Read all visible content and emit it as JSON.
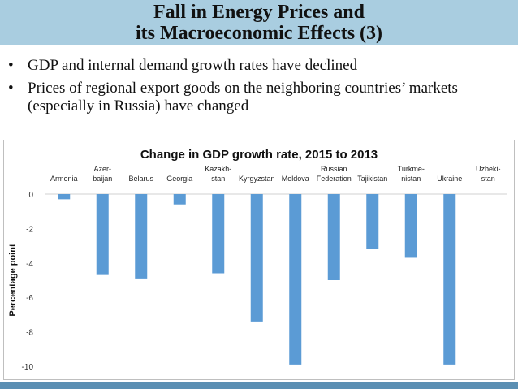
{
  "slide": {
    "title_line1": "Fall in Energy Prices and",
    "title_line2": "its Macroeconomic Effects (3)",
    "bullets": [
      "GDP and internal demand growth rates have declined",
      "Prices of regional export goods on the neighboring countries’ markets (especially in Russia) have changed"
    ],
    "bullet_symbol": "•"
  },
  "colors": {
    "title_band": "#a9cde0",
    "bar": "#5b9bd5",
    "bottom_band": "#5b8fb3"
  },
  "chart_data": {
    "type": "bar",
    "title": "Change in GDP growth rate, 2015 to 2013",
    "ylabel": "Percentage point",
    "xlabel": "",
    "ylim": [
      -10,
      0
    ],
    "yticks": [
      0,
      -2,
      -4,
      -6,
      -8,
      -10
    ],
    "grid": false,
    "categories": [
      [
        "Armenia"
      ],
      [
        "Azer-",
        "baijan"
      ],
      [
        "Belarus"
      ],
      [
        "Georgia"
      ],
      [
        "Kazakh-",
        "stan"
      ],
      [
        "Kyrgyzstan"
      ],
      [
        "Moldova"
      ],
      [
        "Russian",
        "Federation"
      ],
      [
        "Tajikistan"
      ],
      [
        "Turkme-",
        "nistan"
      ],
      [
        "Ukraine"
      ],
      [
        "Uzbeki-",
        "stan"
      ]
    ],
    "values": [
      -0.3,
      -4.7,
      -4.9,
      -0.6,
      -4.6,
      -7.4,
      -9.9,
      -5.0,
      -3.2,
      -3.7,
      -9.9,
      0.0
    ]
  }
}
